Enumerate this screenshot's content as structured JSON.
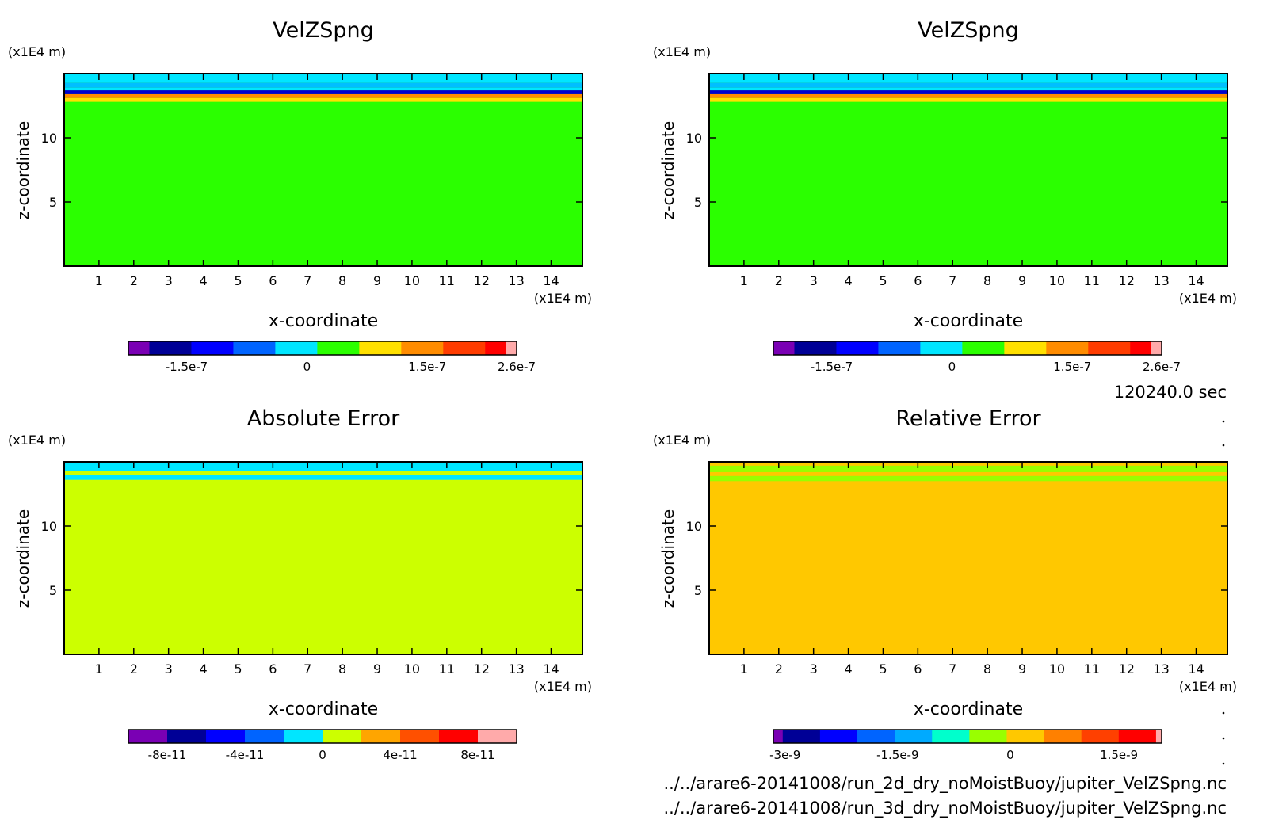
{
  "footer": {
    "time": "120240.0 sec",
    "file1": "../../arare6-20141008/run_2d_dry_noMoistBuoy/jupiter_VelZSpng.nc",
    "file2": "../../arare6-20141008/run_3d_dry_noMoistBuoy/jupiter_VelZSpng.nc"
  },
  "chart_data": [
    {
      "type": "heatmap",
      "title": "VelZSpng",
      "xlabel": "x-coordinate",
      "ylabel": "z-coordinate",
      "x_unit": "(x1E4 m)",
      "y_unit": "(x1E4 m)",
      "xlim": [
        0,
        14.9
      ],
      "ylim": [
        0,
        15
      ],
      "x_ticks": [
        1,
        2,
        3,
        4,
        5,
        6,
        7,
        8,
        9,
        10,
        11,
        12,
        13,
        14
      ],
      "y_ticks": [
        5,
        10
      ],
      "background_color": "#2bff00",
      "bands": [
        {
          "y0": 12.8,
          "y1": 13.1,
          "color": "#ffe000"
        },
        {
          "y0": 13.1,
          "y1": 13.4,
          "color": "#ff8c00"
        },
        {
          "y0": 13.4,
          "y1": 13.7,
          "color": "#0000cc"
        },
        {
          "y0": 13.7,
          "y1": 13.9,
          "color": "#00e6ff"
        },
        {
          "y0": 13.9,
          "y1": 14.3,
          "color": "#00bfff"
        },
        {
          "y0": 14.3,
          "y1": 15.0,
          "color": "#00e6ff"
        }
      ],
      "colorbar": {
        "colors": [
          "#7a00b4",
          "#000096",
          "#0000ff",
          "#0064ff",
          "#00e6ff",
          "#2bff00",
          "#ffe000",
          "#ff8c00",
          "#ff3c00",
          "#ff0000",
          "#ffaaaa"
        ],
        "widths": [
          1,
          2,
          2,
          2,
          2,
          2,
          2,
          2,
          2,
          1,
          0.5
        ],
        "labels": [
          {
            "text": "-1.5e-7",
            "pos": 0.15
          },
          {
            "text": "0",
            "pos": 0.46
          },
          {
            "text": "1.5e-7",
            "pos": 0.77
          },
          {
            "text": "2.6e-7",
            "pos": 1.0
          }
        ]
      }
    },
    {
      "type": "heatmap",
      "title": "VelZSpng",
      "xlabel": "x-coordinate",
      "ylabel": "z-coordinate",
      "x_unit": "(x1E4 m)",
      "y_unit": "(x1E4 m)",
      "xlim": [
        0,
        14.9
      ],
      "ylim": [
        0,
        15
      ],
      "x_ticks": [
        1,
        2,
        3,
        4,
        5,
        6,
        7,
        8,
        9,
        10,
        11,
        12,
        13,
        14
      ],
      "y_ticks": [
        5,
        10
      ],
      "background_color": "#2bff00",
      "bands": [
        {
          "y0": 12.8,
          "y1": 13.1,
          "color": "#ffe000"
        },
        {
          "y0": 13.1,
          "y1": 13.4,
          "color": "#ff8c00"
        },
        {
          "y0": 13.4,
          "y1": 13.7,
          "color": "#0000cc"
        },
        {
          "y0": 13.7,
          "y1": 13.9,
          "color": "#00e6ff"
        },
        {
          "y0": 13.9,
          "y1": 14.3,
          "color": "#00bfff"
        },
        {
          "y0": 14.3,
          "y1": 15.0,
          "color": "#00e6ff"
        }
      ],
      "colorbar": {
        "colors": [
          "#7a00b4",
          "#000096",
          "#0000ff",
          "#0064ff",
          "#00e6ff",
          "#2bff00",
          "#ffe000",
          "#ff8c00",
          "#ff3c00",
          "#ff0000",
          "#ffaaaa"
        ],
        "widths": [
          1,
          2,
          2,
          2,
          2,
          2,
          2,
          2,
          2,
          1,
          0.5
        ],
        "labels": [
          {
            "text": "-1.5e-7",
            "pos": 0.15
          },
          {
            "text": "0",
            "pos": 0.46
          },
          {
            "text": "1.5e-7",
            "pos": 0.77
          },
          {
            "text": "2.6e-7",
            "pos": 1.0
          }
        ]
      }
    },
    {
      "type": "heatmap",
      "title": "Absolute Error",
      "xlabel": "x-coordinate",
      "ylabel": "z-coordinate",
      "x_unit": "(x1E4 m)",
      "y_unit": "(x1E4 m)",
      "xlim": [
        0,
        14.9
      ],
      "ylim": [
        0,
        15
      ],
      "x_ticks": [
        1,
        2,
        3,
        4,
        5,
        6,
        7,
        8,
        9,
        10,
        11,
        12,
        13,
        14
      ],
      "y_ticks": [
        5,
        10
      ],
      "background_color": "#ccff00",
      "bands": [
        {
          "y0": 13.6,
          "y1": 14.0,
          "color": "#00e6ff"
        },
        {
          "y0": 14.3,
          "y1": 15.0,
          "color": "#00e6ff"
        }
      ],
      "colorbar": {
        "colors": [
          "#7a00b4",
          "#000096",
          "#0000ff",
          "#0064ff",
          "#00e6ff",
          "#ccff00",
          "#ffa500",
          "#ff5000",
          "#ff0000",
          "#ffaaaa"
        ],
        "widths": [
          1,
          1,
          1,
          1,
          1,
          1,
          1,
          1,
          1,
          1
        ],
        "labels": [
          {
            "text": "-8e-11",
            "pos": 0.1
          },
          {
            "text": "-4e-11",
            "pos": 0.3
          },
          {
            "text": "0",
            "pos": 0.5
          },
          {
            "text": "4e-11",
            "pos": 0.7
          },
          {
            "text": "8e-11",
            "pos": 0.9
          }
        ]
      }
    },
    {
      "type": "heatmap",
      "title": "Relative Error",
      "xlabel": "x-coordinate",
      "ylabel": "z-coordinate",
      "x_unit": "(x1E4 m)",
      "y_unit": "(x1E4 m)",
      "xlim": [
        0,
        14.9
      ],
      "ylim": [
        0,
        15
      ],
      "x_ticks": [
        1,
        2,
        3,
        4,
        5,
        6,
        7,
        8,
        9,
        10,
        11,
        12,
        13,
        14
      ],
      "y_ticks": [
        5,
        10
      ],
      "background_color": "#ffc800",
      "bands": [
        {
          "y0": 13.5,
          "y1": 13.9,
          "color": "#99ff00"
        },
        {
          "y0": 14.2,
          "y1": 14.7,
          "color": "#99ff00"
        }
      ],
      "colorbar": {
        "colors": [
          "#7a00b4",
          "#000096",
          "#0000ff",
          "#0064ff",
          "#00aaff",
          "#00ffcc",
          "#99ff00",
          "#ffc800",
          "#ff8000",
          "#ff4000",
          "#ff0000",
          "#ffaaaa"
        ],
        "widths": [
          0.5,
          2,
          2,
          2,
          2,
          2,
          2,
          2,
          2,
          2,
          2,
          0.3
        ],
        "labels": [
          {
            "text": "-3e-9",
            "pos": 0.03
          },
          {
            "text": "-1.5e-9",
            "pos": 0.32
          },
          {
            "text": "0",
            "pos": 0.61
          },
          {
            "text": "1.5e-9",
            "pos": 0.89
          }
        ]
      }
    }
  ]
}
